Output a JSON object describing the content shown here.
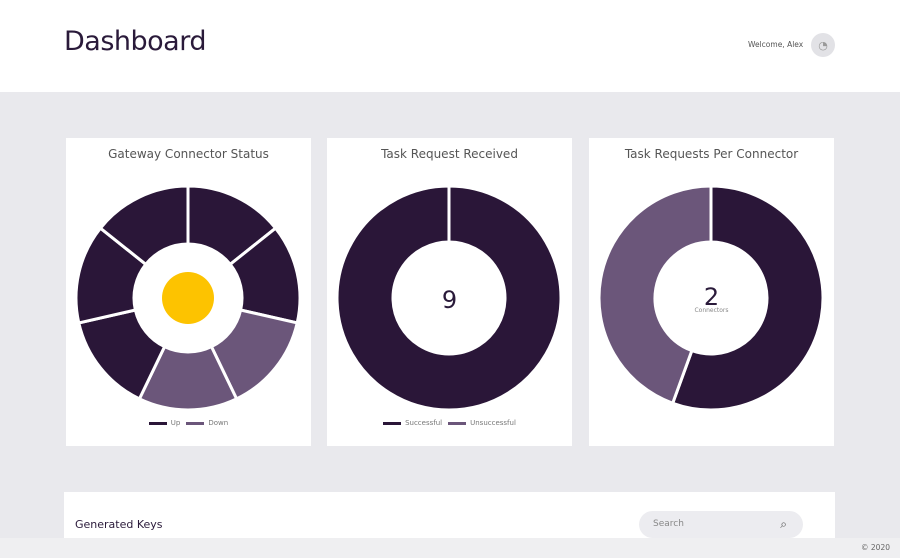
{
  "header": {
    "title": "Dashboard",
    "welcome": "Welcome, Alex"
  },
  "colors": {
    "up": "#2a1638",
    "down": "#6b567a",
    "indicator": "#fdc300"
  },
  "cards": [
    {
      "title": "Gateway Connector Status",
      "legend": [
        "Up",
        "Down"
      ]
    },
    {
      "title": "Task Request Received",
      "center_value": "9",
      "legend": [
        "Successful",
        "Unsuccessful"
      ]
    },
    {
      "title": "Task Requests Per Connector",
      "center_value": "2",
      "center_label": "Connectors"
    }
  ],
  "chart_data": [
    {
      "type": "pie",
      "title": "Gateway Connector Status",
      "segments": [
        "Up",
        "Up",
        "Down",
        "Down",
        "Up",
        "Up",
        "Up"
      ],
      "categories": [
        "Up",
        "Down"
      ],
      "values": [
        5,
        2
      ]
    },
    {
      "type": "pie",
      "title": "Task Request Received",
      "categories": [
        "Successful",
        "Unsuccessful"
      ],
      "values": [
        9,
        0
      ]
    },
    {
      "type": "pie",
      "title": "Task Requests Per Connector",
      "values": [
        5,
        4
      ]
    }
  ],
  "keys": {
    "title": "Generated Keys",
    "search_placeholder": "Search"
  },
  "footer": {
    "copyright": "© 2020"
  }
}
